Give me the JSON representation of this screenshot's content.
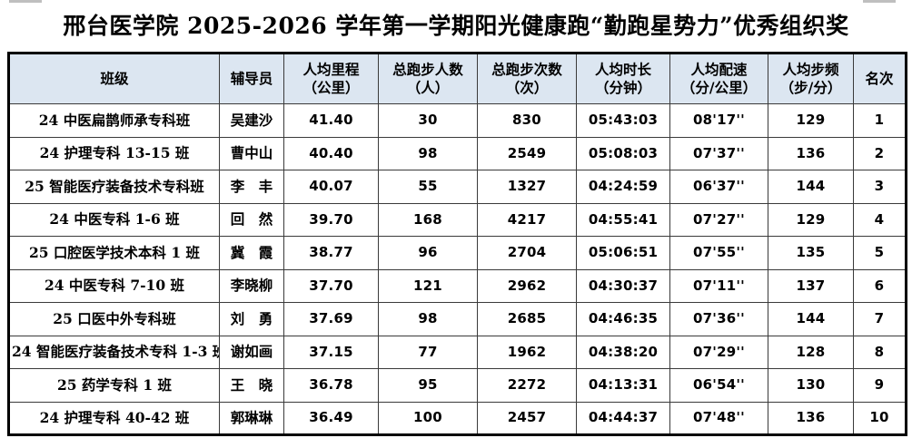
{
  "title": "邢台医学院 2025-2026 学年第一学期阳光健康跑“勤跑星势力”优秀组织奖",
  "colors": {
    "header_bg": "#dce6f1",
    "border_outer": "#000000",
    "border_inner": "#3a3a3a",
    "text": "#000000"
  },
  "table": {
    "headers": [
      "班级",
      "辅导员",
      "人均里程\n（公里）",
      "总跑步人数\n（人）",
      "总跑步次数\n（次）",
      "人均时长\n（分钟）",
      "人均配速\n（分/公里）",
      "人均步频\n（步/分）",
      "名次"
    ],
    "field_order": [
      "class",
      "counselor",
      "avg_km",
      "runners",
      "runs",
      "duration",
      "pace",
      "cadence",
      "rank"
    ],
    "rows": [
      {
        "class": "24 中医扁鹊师承专科班",
        "counselor": "吴建沙",
        "avg_km": "41.40",
        "runners": "30",
        "runs": "830",
        "duration": "05:43:03",
        "pace": "08'17''",
        "cadence": "129",
        "rank": "1"
      },
      {
        "class": "24 护理专科 13-15 班",
        "counselor": "曹中山",
        "avg_km": "40.40",
        "runners": "98",
        "runs": "2549",
        "duration": "05:08:03",
        "pace": "07'37''",
        "cadence": "136",
        "rank": "2"
      },
      {
        "class": "25 智能医疗装备技术专科班",
        "counselor": "李　丰",
        "avg_km": "40.07",
        "runners": "55",
        "runs": "1327",
        "duration": "04:24:59",
        "pace": "06'37''",
        "cadence": "144",
        "rank": "3"
      },
      {
        "class": "24 中医专科 1-6 班",
        "counselor": "回　然",
        "avg_km": "39.70",
        "runners": "168",
        "runs": "4217",
        "duration": "04:55:41",
        "pace": "07'27''",
        "cadence": "129",
        "rank": "4"
      },
      {
        "class": "25 口腔医学技术本科 1 班",
        "counselor": "冀　霞",
        "avg_km": "38.77",
        "runners": "96",
        "runs": "2704",
        "duration": "05:06:51",
        "pace": "07'55''",
        "cadence": "135",
        "rank": "5"
      },
      {
        "class": "24 中医专科 7-10 班",
        "counselor": "李晓柳",
        "avg_km": "37.70",
        "runners": "121",
        "runs": "2962",
        "duration": "04:30:37",
        "pace": "07'11''",
        "cadence": "137",
        "rank": "6"
      },
      {
        "class": "25 口医中外专科班",
        "counselor": "刘　勇",
        "avg_km": "37.69",
        "runners": "98",
        "runs": "2685",
        "duration": "04:46:35",
        "pace": "07'36''",
        "cadence": "144",
        "rank": "7"
      },
      {
        "class": "24 智能医疗装备技术专科 1-3 班",
        "counselor": "谢如画",
        "avg_km": "37.15",
        "runners": "77",
        "runs": "1962",
        "duration": "04:38:20",
        "pace": "07'29''",
        "cadence": "128",
        "rank": "8"
      },
      {
        "class": "25 药学专科 1 班",
        "counselor": "王　晓",
        "avg_km": "36.78",
        "runners": "95",
        "runs": "2272",
        "duration": "04:13:31",
        "pace": "06'54''",
        "cadence": "130",
        "rank": "9"
      },
      {
        "class": "24 护理专科 40-42 班",
        "counselor": "郭琳琳",
        "avg_km": "36.49",
        "runners": "100",
        "runs": "2457",
        "duration": "04:44:37",
        "pace": "07'48''",
        "cadence": "136",
        "rank": "10"
      }
    ]
  }
}
